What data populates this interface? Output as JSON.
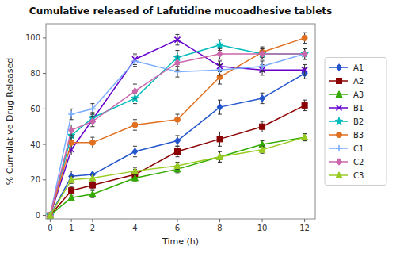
{
  "chart_data": {
    "type": "line",
    "title": "Cumulative released of Lafutidine mucoadhesive tablets",
    "xlabel": "Time (h)",
    "ylabel": "% Cumulative Drug Released",
    "x": [
      0,
      1,
      2,
      4,
      6,
      8,
      10,
      12
    ],
    "series": [
      {
        "name": "A1",
        "color": "#2255cc",
        "marker": "diamond",
        "values": [
          0,
          22,
          23,
          36,
          42,
          61,
          66,
          80
        ],
        "errors": [
          0.5,
          3,
          2,
          3,
          3,
          4,
          3,
          3
        ]
      },
      {
        "name": "A2",
        "color": "#8b0000",
        "marker": "square",
        "values": [
          0,
          14,
          17,
          23,
          36,
          43,
          50,
          62
        ],
        "errors": [
          0.5,
          2,
          2,
          3,
          3,
          4,
          3,
          3
        ]
      },
      {
        "name": "A3",
        "color": "#33aa00",
        "marker": "triangle",
        "values": [
          0,
          10,
          12,
          21,
          26,
          33,
          40,
          44
        ],
        "errors": [
          0.5,
          1,
          2,
          2,
          2,
          3,
          2,
          2
        ]
      },
      {
        "name": "B1",
        "color": "#6600cc",
        "marker": "x",
        "values": [
          0,
          37,
          54,
          88,
          99,
          84,
          82,
          82
        ],
        "errors": [
          0.5,
          3,
          3,
          3,
          3,
          3,
          3,
          3
        ]
      },
      {
        "name": "B2",
        "color": "#00bbbb",
        "marker": "star",
        "values": [
          0,
          45,
          55,
          66,
          89,
          96,
          91,
          91
        ],
        "errors": [
          0.5,
          3,
          3,
          3,
          4,
          3,
          3,
          3
        ]
      },
      {
        "name": "B3",
        "color": "#e07020",
        "marker": "circle",
        "values": [
          0,
          41,
          41,
          51,
          54,
          78,
          92,
          100
        ],
        "errors": [
          0.5,
          3,
          3,
          3,
          3,
          4,
          3,
          3
        ]
      },
      {
        "name": "C1",
        "color": "#7aadff",
        "marker": "plus",
        "values": [
          0,
          57,
          60,
          87,
          81,
          82,
          84,
          91
        ],
        "errors": [
          0.5,
          3,
          3,
          3,
          3,
          3,
          3,
          3
        ]
      },
      {
        "name": "C2",
        "color": "#cc66aa",
        "marker": "diamond",
        "values": [
          0,
          48,
          53,
          70,
          86,
          91,
          91,
          91
        ],
        "errors": [
          0.5,
          3,
          3,
          4,
          4,
          3,
          3,
          3
        ]
      },
      {
        "name": "C3",
        "color": "#99cc22",
        "marker": "triangle",
        "values": [
          0,
          20,
          21,
          25,
          28,
          33,
          37,
          44
        ],
        "errors": [
          0.5,
          2,
          2,
          2,
          2,
          3,
          2,
          2
        ]
      }
    ],
    "xlim": [
      -0.2,
      12.5
    ],
    "ylim": [
      -2,
      108
    ],
    "xticks": [
      0,
      1,
      2,
      4,
      6,
      8,
      10,
      12
    ],
    "yticks": [
      0,
      20,
      40,
      60,
      80,
      100
    ],
    "grid": false,
    "legend": "right"
  }
}
